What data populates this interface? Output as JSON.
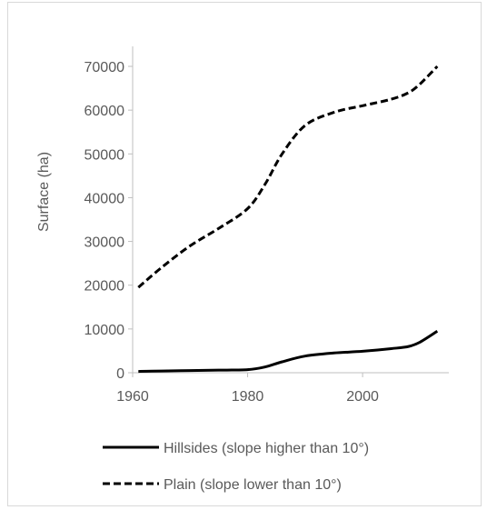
{
  "chart_data": {
    "type": "line",
    "title": "",
    "xlabel": "",
    "ylabel": "Surface (ha)",
    "xlim": [
      1960,
      2015
    ],
    "ylim": [
      0,
      70000
    ],
    "xticks": [
      1960,
      1980,
      2000
    ],
    "yticks": [
      0,
      10000,
      20000,
      30000,
      40000,
      50000,
      60000,
      70000
    ],
    "grid": false,
    "legend_position": "bottom",
    "series": [
      {
        "name": "Hillsides (slope higher than 10°)",
        "style": "solid",
        "color": "#000000",
        "x": [
          1961,
          1965,
          1970,
          1975,
          1980,
          1983,
          1986,
          1990,
          1995,
          2000,
          2005,
          2008,
          2010,
          2013
        ],
        "y": [
          300,
          400,
          500,
          600,
          700,
          1300,
          2500,
          3800,
          4500,
          4900,
          5500,
          6000,
          7000,
          9500
        ]
      },
      {
        "name": "Plain (slope lower than 10°)",
        "style": "dashed",
        "color": "#000000",
        "x": [
          1961,
          1965,
          1970,
          1975,
          1980,
          1983,
          1986,
          1990,
          1995,
          2000,
          2005,
          2008,
          2010,
          2013
        ],
        "y": [
          19500,
          24000,
          29000,
          33000,
          37500,
          43000,
          50000,
          56500,
          59500,
          61000,
          62500,
          64000,
          66000,
          70000
        ]
      }
    ]
  }
}
